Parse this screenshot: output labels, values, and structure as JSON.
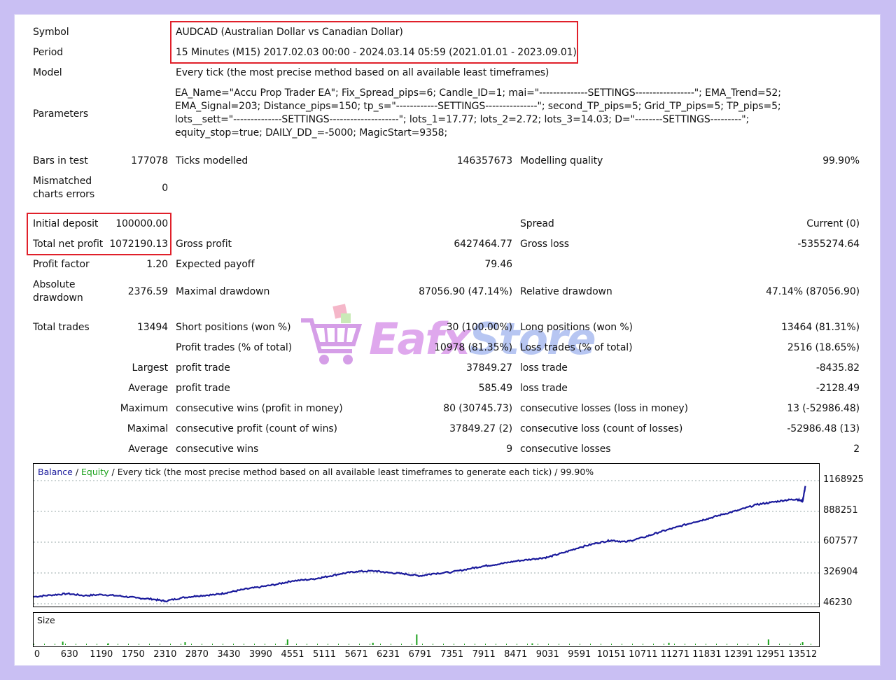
{
  "header": {
    "symbol_label": "Symbol",
    "symbol_value": "AUDCAD (Australian Dollar vs Canadian Dollar)",
    "period_label": "Period",
    "period_value": "15 Minutes (M15) 2017.02.03 00:00 - 2024.03.14 05:59 (2021.01.01 - 2023.09.01)",
    "model_label": "Model",
    "model_value": "Every tick (the most precise method based on all available least timeframes)",
    "parameters_label": "Parameters",
    "parameters_lines": [
      "EA_Name=\"Accu Prop Trader EA\"; Fix_Spread_pips=6; Candle_ID=1; mai=\"--------------SETTINGS-----------------\"; EMA_Trend=52;",
      "EMA_Signal=203; Distance_pips=150; tp_s=\"------------SETTINGS---------------\"; second_TP_pips=5; Grid_TP_pips=5; TP_pips=5;",
      "lots__sett=\"--------------SETTINGS--------------------\"; lots_1=17.77; lots_2=2.72; lots_3=14.03; D=\"--------SETTINGS---------\";",
      "equity_stop=true; DAILY_DD_=-5000; MagicStart=9358;"
    ]
  },
  "stats": {
    "bars_label": "Bars in test",
    "bars_value": "177078",
    "ticks_label": "Ticks modelled",
    "ticks_value": "146357673",
    "quality_label": "Modelling quality",
    "quality_value": "99.90%",
    "mismatch_label_1": "Mismatched",
    "mismatch_label_2": "charts errors",
    "mismatch_value": "0",
    "deposit_label": "Initial deposit",
    "deposit_value": "100000.00",
    "spread_label": "Spread",
    "spread_value": "Current (0)",
    "netprofit_label": "Total net profit",
    "netprofit_value": "1072190.13",
    "grossprofit_label": "Gross profit",
    "grossprofit_value": "6427464.77",
    "grossloss_label": "Gross loss",
    "grossloss_value": "-5355274.64",
    "pf_label": "Profit factor",
    "pf_value": "1.20",
    "payoff_label": "Expected payoff",
    "payoff_value": "79.46",
    "absdd_label_1": "Absolute",
    "absdd_label_2": "drawdown",
    "absdd_value": "2376.59",
    "maxdd_label": "Maximal drawdown",
    "maxdd_value": "87056.90 (47.14%)",
    "reldd_label": "Relative drawdown",
    "reldd_value": "47.14% (87056.90)",
    "trades_label": "Total trades",
    "trades_value": "13494",
    "short_label": "Short positions (won %)",
    "short_value": "30 (100.00%)",
    "long_label": "Long positions (won %)",
    "long_value": "13464 (81.31%)",
    "profittr_label": "Profit trades (% of total)",
    "profittr_value": "10978 (81.35%)",
    "losstr_label": "Loss trades (% of total)",
    "losstr_value": "2516 (18.65%)",
    "largest_label": "Largest",
    "largest_profit_label": "profit trade",
    "largest_profit_value": "37849.27",
    "largest_loss_label": "loss trade",
    "largest_loss_value": "-8435.82",
    "average_label": "Average",
    "average_profit_label": "profit trade",
    "average_profit_value": "585.49",
    "average_loss_label": "loss trade",
    "average_loss_value": "-2128.49",
    "maximum_label": "Maximum",
    "max_wins_label": "consecutive wins (profit in money)",
    "max_wins_value": "80 (30745.73)",
    "max_losses_label": "consecutive losses (loss in money)",
    "max_losses_value": "13 (-52986.48)",
    "maximal_label": "Maximal",
    "maximal_profit_label": "consecutive profit (count of wins)",
    "maximal_profit_value": "37849.27 (2)",
    "maximal_loss_label": "consecutive loss (count of losses)",
    "maximal_loss_value": "-52986.48 (13)",
    "avg2_label": "Average",
    "avg_wins_label": "consecutive wins",
    "avg_wins_value": "9",
    "avg_losses_label": "consecutive losses",
    "avg_losses_value": "2"
  },
  "watermark": {
    "text_1": "Eafx",
    "text_2": "Store"
  },
  "colors": {
    "balance": "#1a1a9c",
    "equity": "#1aa01a",
    "highlight": "#e0202a",
    "background": "#c9bff3"
  },
  "chart_data": {
    "type": "line",
    "legend": {
      "balance": "Balance",
      "sep1": " / ",
      "equity": "Equity",
      "rest": " / Every tick (the most precise method based on all available least timeframes to generate each tick) / 99.90%"
    },
    "y_ticks": [
      "1168925",
      "888251",
      "607577",
      "326904",
      "46230"
    ],
    "ylim": [
      46230,
      1168925
    ],
    "x_ticks": [
      "0",
      "630",
      "1190",
      "1750",
      "2310",
      "2870",
      "3430",
      "3990",
      "4551",
      "5111",
      "5671",
      "6231",
      "6791",
      "7351",
      "7911",
      "8471",
      "9031",
      "9591",
      "10151",
      "10711",
      "11271",
      "11831",
      "12391",
      "12951",
      "13512"
    ],
    "xlim": [
      0,
      13800
    ],
    "series": [
      {
        "name": "Balance",
        "x": [
          0,
          300,
          600,
          900,
          1200,
          1500,
          1800,
          2100,
          2310,
          2600,
          2870,
          3200,
          3430,
          3700,
          3990,
          4300,
          4551,
          4900,
          5111,
          5400,
          5671,
          6000,
          6231,
          6500,
          6791,
          7000,
          7351,
          7700,
          7911,
          8200,
          8471,
          8800,
          9031,
          9300,
          9591,
          9900,
          10151,
          10400,
          10711,
          11000,
          11271,
          11600,
          11831,
          12100,
          12391,
          12700,
          12951,
          13200,
          13400,
          13512,
          13560
        ],
        "values": [
          110000,
          125000,
          138000,
          120000,
          130000,
          118000,
          100000,
          88000,
          70000,
          100000,
          118000,
          130000,
          150000,
          178000,
          200000,
          226000,
          255000,
          270000,
          290000,
          320000,
          340000,
          345000,
          330000,
          320000,
          300000,
          320000,
          335000,
          370000,
          390000,
          410000,
          435000,
          455000,
          470000,
          510000,
          560000,
          600000,
          625000,
          610000,
          650000,
          700000,
          740000,
          790000,
          820000,
          860000,
          900000,
          950000,
          970000,
          990000,
          1000000,
          980000,
          1120000
        ]
      }
    ],
    "size_bars": [
      {
        "x": 500,
        "v": 0.6
      },
      {
        "x": 1300,
        "v": 0.3
      },
      {
        "x": 2650,
        "v": 0.5
      },
      {
        "x": 4450,
        "v": 1.0
      },
      {
        "x": 5950,
        "v": 0.4
      },
      {
        "x": 6720,
        "v": 1.9
      },
      {
        "x": 8750,
        "v": 0.3
      },
      {
        "x": 11150,
        "v": 0.4
      },
      {
        "x": 12900,
        "v": 1.0
      },
      {
        "x": 13500,
        "v": 0.5
      }
    ],
    "size_label": "Size"
  }
}
